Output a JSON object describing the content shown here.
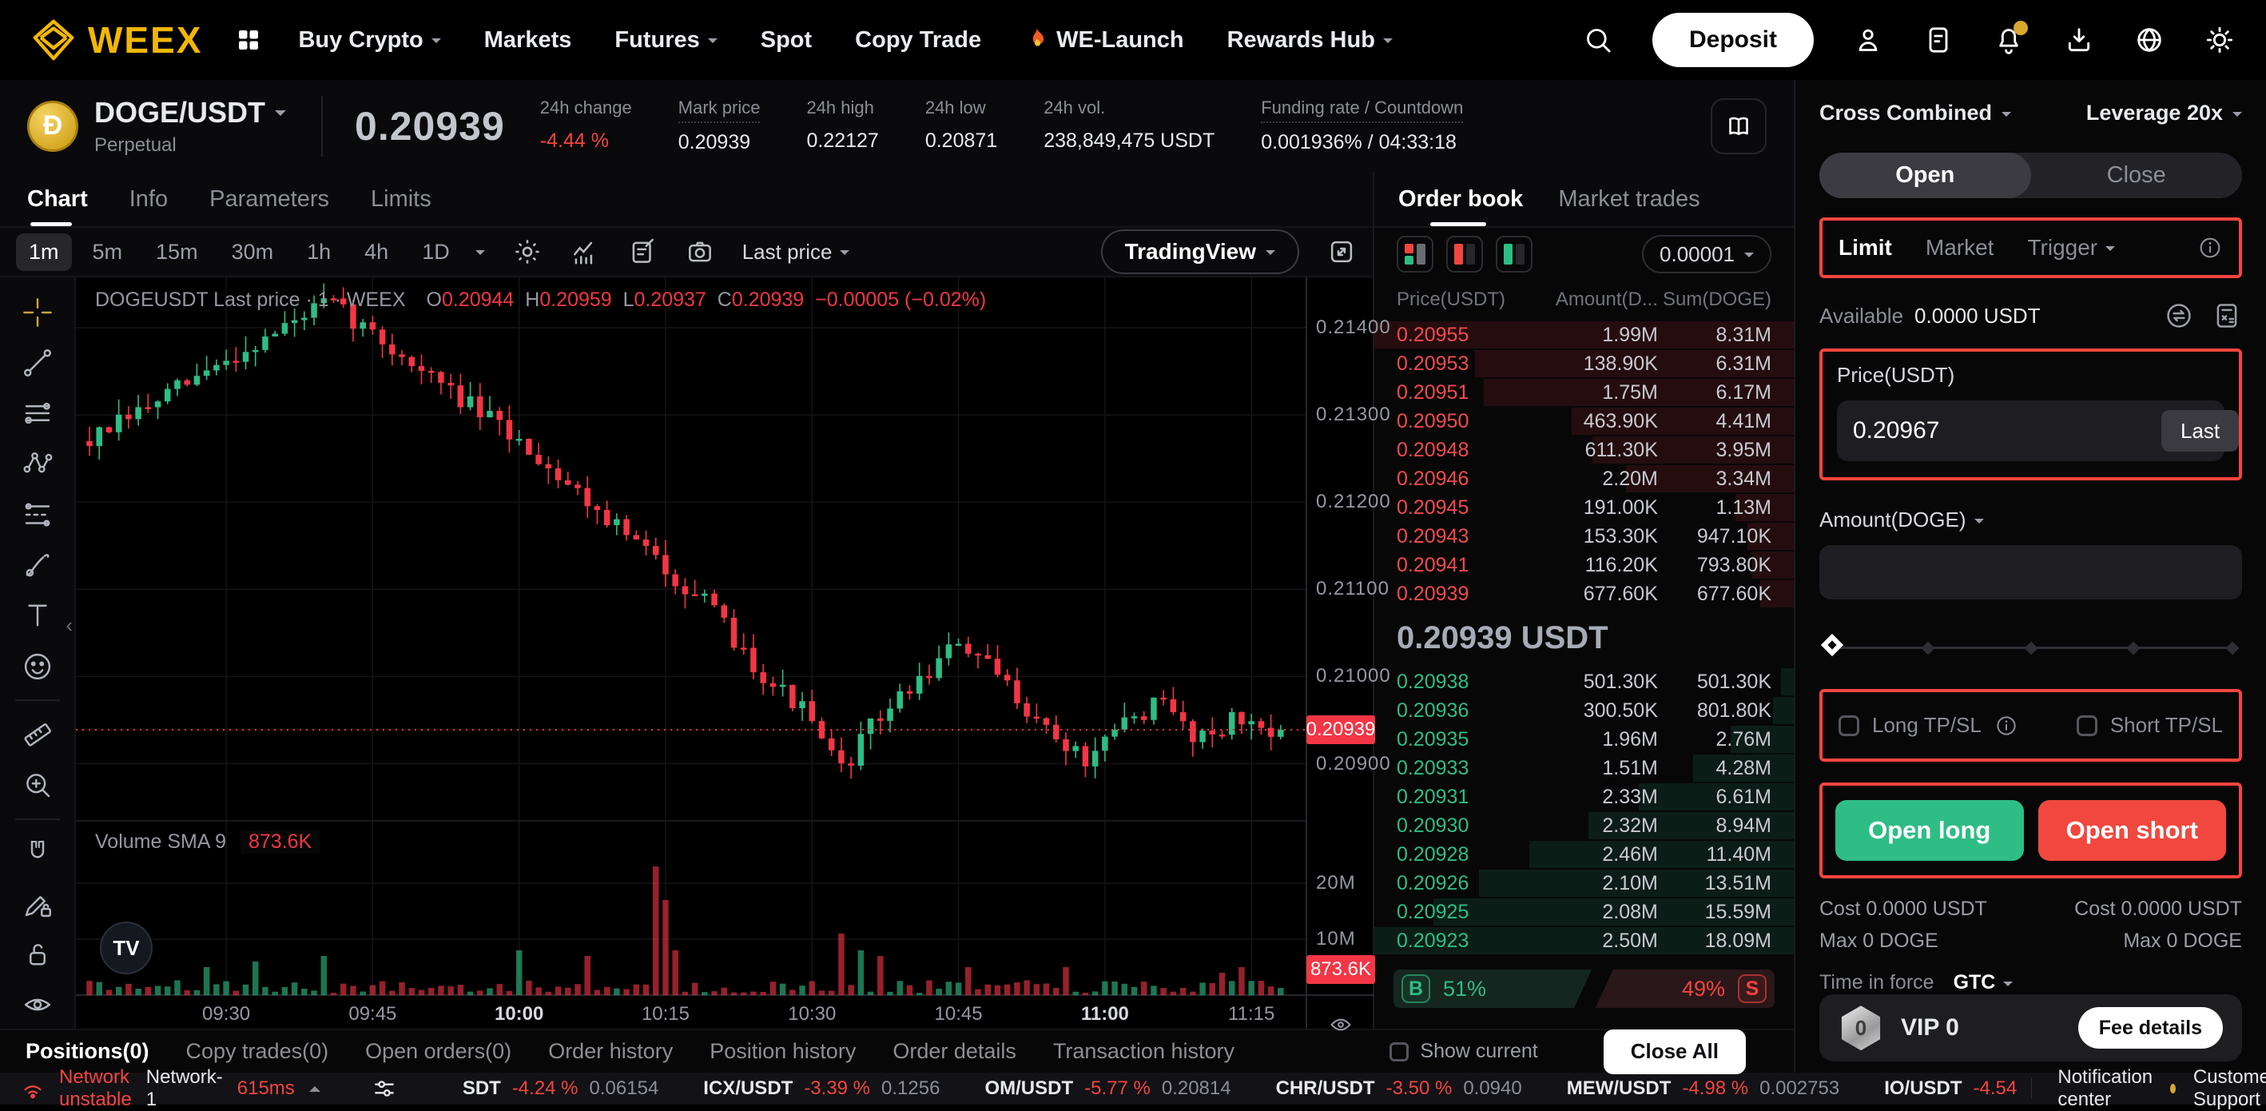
{
  "nav": {
    "brand": "WEEX",
    "menu": [
      {
        "label": "Buy Crypto",
        "caret": true
      },
      {
        "label": "Markets",
        "caret": false
      },
      {
        "label": "Futures",
        "caret": true
      },
      {
        "label": "Spot",
        "caret": false
      },
      {
        "label": "Copy Trade",
        "caret": false
      },
      {
        "label": "WE-Launch",
        "caret": false,
        "flame": true
      },
      {
        "label": "Rewards Hub",
        "caret": true
      }
    ],
    "deposit_label": "Deposit"
  },
  "ticker": {
    "pair": "DOGE/USDT",
    "market_type": "Perpetual",
    "last_price": "0.20939",
    "stats": [
      {
        "label": "24h change",
        "value": "-4.44 %",
        "value_color": "red",
        "underline": false
      },
      {
        "label": "Mark price",
        "value": "0.20939",
        "underline": true
      },
      {
        "label": "24h high",
        "value": "0.22127",
        "underline": false
      },
      {
        "label": "24h low",
        "value": "0.20871",
        "underline": false
      },
      {
        "label": "24h vol.",
        "value": "238,849,475 USDT",
        "underline": false
      },
      {
        "label": "Funding rate / Countdown",
        "value": "0.001936% / 04:33:18",
        "underline": true
      }
    ]
  },
  "chart": {
    "tabs": [
      "Chart",
      "Info",
      "Parameters",
      "Limits"
    ],
    "active_tab": "Chart",
    "intervals": [
      "1m",
      "5m",
      "15m",
      "30m",
      "1h",
      "4h",
      "1D"
    ],
    "active_interval": "1m",
    "price_source": "Last price",
    "vendor": "TradingView",
    "tv_logo": "TV",
    "legend": {
      "series": "DOGEUSDT Last price · 1 · WEEX",
      "items": [
        [
          "O",
          "0.20944"
        ],
        [
          "H",
          "0.20959"
        ],
        [
          "L",
          "0.20937"
        ],
        [
          "C",
          "0.20939"
        ]
      ],
      "change": "−0.00005 (−0.02%)"
    },
    "volume_legend": {
      "label": "Volume SMA 9",
      "value": "873.6K"
    },
    "price_axis": [
      "0.21400",
      "0.21300",
      "0.21200",
      "0.21100",
      "0.21000",
      "0.20900"
    ],
    "last_price_badge": "0.20939",
    "volume_axis": [
      "20M",
      "10M"
    ],
    "volume_badge": "873.6K",
    "time_axis": [
      "09:30",
      "09:45",
      "10:00",
      "10:15",
      "10:30",
      "10:45",
      "11:00",
      "11:15"
    ],
    "time_axis_highlighted": [
      "10:00",
      "11:00"
    ],
    "colors": {
      "up": "#2ebd85",
      "down": "#f23645",
      "grid": "#151517",
      "badge": "#f23645"
    },
    "trend": [
      [
        0,
        0.2127
      ],
      [
        0.05,
        0.2131
      ],
      [
        0.1,
        0.2135
      ],
      [
        0.15,
        0.2139
      ],
      [
        0.2,
        0.2143
      ],
      [
        0.23,
        0.214
      ],
      [
        0.27,
        0.2136
      ],
      [
        0.32,
        0.2131
      ],
      [
        0.37,
        0.2126
      ],
      [
        0.42,
        0.212
      ],
      [
        0.47,
        0.2114
      ],
      [
        0.52,
        0.2108
      ],
      [
        0.56,
        0.2101
      ],
      [
        0.6,
        0.2096
      ],
      [
        0.63,
        0.2089
      ],
      [
        0.66,
        0.2095
      ],
      [
        0.7,
        0.21
      ],
      [
        0.73,
        0.2104
      ],
      [
        0.77,
        0.2099
      ],
      [
        0.81,
        0.2093
      ],
      [
        0.84,
        0.209
      ],
      [
        0.87,
        0.2095
      ],
      [
        0.9,
        0.2097
      ],
      [
        0.93,
        0.2093
      ],
      [
        0.96,
        0.2095
      ],
      [
        1,
        0.20939
      ]
    ],
    "volume_spikes": [
      [
        0.1,
        5
      ],
      [
        0.14,
        6
      ],
      [
        0.2,
        7
      ],
      [
        0.36,
        8
      ],
      [
        0.42,
        7
      ],
      [
        0.475,
        23
      ],
      [
        0.483,
        17
      ],
      [
        0.49,
        8
      ],
      [
        0.63,
        11
      ],
      [
        0.645,
        8
      ],
      [
        0.66,
        7
      ],
      [
        0.74,
        5
      ],
      [
        0.82,
        5
      ],
      [
        0.95,
        4
      ],
      [
        0.97,
        5
      ]
    ]
  },
  "orderbook": {
    "tabs": [
      "Order book",
      "Market trades"
    ],
    "active_tab": "Order book",
    "precision": "0.00001",
    "headers": [
      "Price(USDT)",
      "Amount(D...",
      "Sum(DOGE)"
    ],
    "asks": [
      {
        "price": "0.20955",
        "amount": "1.99M",
        "sum": "8.31M",
        "pct": 100
      },
      {
        "price": "0.20953",
        "amount": "138.90K",
        "sum": "6.31M",
        "pct": 76
      },
      {
        "price": "0.20951",
        "amount": "1.75M",
        "sum": "6.17M",
        "pct": 74
      },
      {
        "price": "0.20950",
        "amount": "463.90K",
        "sum": "4.41M",
        "pct": 53
      },
      {
        "price": "0.20948",
        "amount": "611.30K",
        "sum": "3.95M",
        "pct": 48
      },
      {
        "price": "0.20946",
        "amount": "2.20M",
        "sum": "3.34M",
        "pct": 40
      },
      {
        "price": "0.20945",
        "amount": "191.00K",
        "sum": "1.13M",
        "pct": 14
      },
      {
        "price": "0.20943",
        "amount": "153.30K",
        "sum": "947.10K",
        "pct": 11
      },
      {
        "price": "0.20941",
        "amount": "116.20K",
        "sum": "793.80K",
        "pct": 10
      },
      {
        "price": "0.20939",
        "amount": "677.60K",
        "sum": "677.60K",
        "pct": 8
      }
    ],
    "mid_price": "0.20939 USDT",
    "bids": [
      {
        "price": "0.20938",
        "amount": "501.30K",
        "sum": "501.30K",
        "pct": 3
      },
      {
        "price": "0.20936",
        "amount": "300.50K",
        "sum": "801.80K",
        "pct": 5
      },
      {
        "price": "0.20935",
        "amount": "1.96M",
        "sum": "2.76M",
        "pct": 15
      },
      {
        "price": "0.20933",
        "amount": "1.51M",
        "sum": "4.28M",
        "pct": 24
      },
      {
        "price": "0.20931",
        "amount": "2.33M",
        "sum": "6.61M",
        "pct": 37
      },
      {
        "price": "0.20930",
        "amount": "2.32M",
        "sum": "8.94M",
        "pct": 49
      },
      {
        "price": "0.20928",
        "amount": "2.46M",
        "sum": "11.40M",
        "pct": 63
      },
      {
        "price": "0.20926",
        "amount": "2.10M",
        "sum": "13.51M",
        "pct": 75
      },
      {
        "price": "0.20925",
        "amount": "2.08M",
        "sum": "15.59M",
        "pct": 86
      },
      {
        "price": "0.20923",
        "amount": "2.50M",
        "sum": "18.09M",
        "pct": 100
      }
    ],
    "buy_label": "B",
    "buy_pct": "51%",
    "sell_pct": "49%",
    "sell_label": "S"
  },
  "panel": {
    "margin_mode": "Cross Combined",
    "leverage": "Leverage 20x",
    "side_tabs": [
      "Open",
      "Close"
    ],
    "active_side": "Open",
    "order_types": [
      "Limit",
      "Market",
      "Trigger"
    ],
    "active_order_type": "Limit",
    "available_label": "Available",
    "available_value": "0.0000 USDT",
    "price_label": "Price(USDT)",
    "price_value": "0.20967",
    "last_button": "Last",
    "amount_label": "Amount(DOGE)",
    "long_tpsl": "Long TP/SL",
    "short_tpsl": "Short TP/SL",
    "open_long": "Open long",
    "open_short": "Open short",
    "cost_label": "Cost",
    "cost_long": "0.0000 USDT",
    "cost_short": "0.0000 USDT",
    "max_label": "Max",
    "max_long": "0 DOGE",
    "max_short": "0 DOGE",
    "tif_label": "Time in force",
    "tif_value": "GTC",
    "vip": "VIP 0",
    "vip_badge": "0",
    "fee_details": "Fee details"
  },
  "bottom_tabs": {
    "items": [
      "Positions(0)",
      "Copy trades(0)",
      "Open orders(0)",
      "Order history",
      "Position history",
      "Order details",
      "Transaction history"
    ],
    "active": "Positions(0)",
    "show_current": "Show current",
    "close_all": "Close All"
  },
  "status": {
    "network_warning": "Network unstable",
    "network": "Network-1",
    "latency": "615ms",
    "pairs": [
      {
        "name": "SDT",
        "change": "-4.24 %",
        "price": "0.06154"
      },
      {
        "name": "ICX/USDT",
        "change": "-3.39 %",
        "price": "0.1256"
      },
      {
        "name": "OM/USDT",
        "change": "-5.77 %",
        "price": "0.20814"
      },
      {
        "name": "CHR/USDT",
        "change": "-3.50 %",
        "price": "0.0940"
      },
      {
        "name": "MEW/USDT",
        "change": "-4.98 %",
        "price": "0.002753"
      },
      {
        "name": "IO/USDT",
        "change": "-4.54",
        "price": ""
      }
    ],
    "notification_center": "Notification center",
    "customer_support": "Customer Support"
  }
}
